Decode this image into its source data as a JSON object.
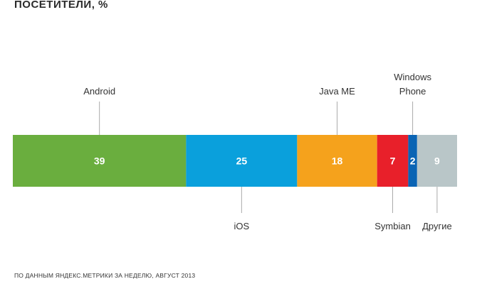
{
  "title": "ПОСЕТИТЕЛИ, %",
  "footer": "ПО ДАННЫМ ЯНДЕКС.МЕТРИКИ ЗА НЕДЕЛЮ, АВГУСТ 2013",
  "chart_data": {
    "type": "bar",
    "orientation": "horizontal-stacked",
    "title": "ПОСЕТИТЕЛИ, %",
    "categories": [
      "Android",
      "iOS",
      "Java ME",
      "Symbian",
      "Windows Phone",
      "Другие"
    ],
    "category_lines": [
      [
        "Android"
      ],
      [
        "iOS"
      ],
      [
        "Java ME"
      ],
      [
        "Symbian"
      ],
      [
        "Windows",
        "Phone"
      ],
      [
        "Другие"
      ]
    ],
    "values": [
      39,
      25,
      18,
      7,
      2,
      9
    ],
    "colors": [
      "#6aae3e",
      "#0aa0dc",
      "#f5a21c",
      "#e8202a",
      "#0a64b4",
      "#b9c6c8"
    ],
    "xlim": [
      0,
      100
    ],
    "grid": false,
    "legend": "none"
  }
}
